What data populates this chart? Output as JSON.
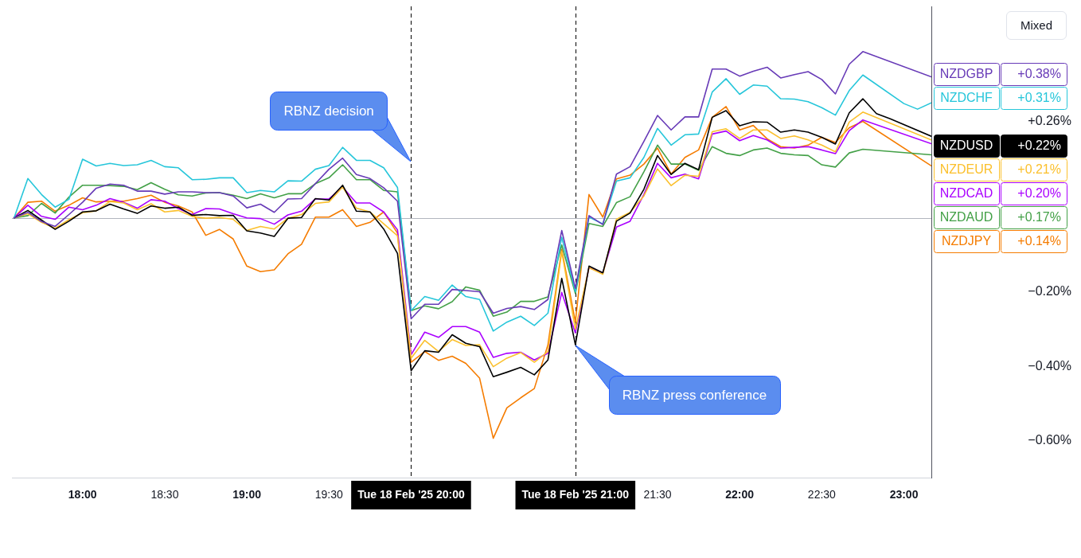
{
  "chart_data": {
    "type": "line",
    "x": [
      17.583,
      17.667,
      17.75,
      17.833,
      17.917,
      18,
      18.083,
      18.167,
      18.25,
      18.333,
      18.417,
      18.5,
      18.583,
      18.667,
      18.75,
      18.833,
      18.917,
      19,
      19.083,
      19.167,
      19.25,
      19.333,
      19.417,
      19.5,
      19.583,
      19.667,
      19.75,
      19.833,
      19.917,
      20,
      20.083,
      20.167,
      20.25,
      20.333,
      20.417,
      20.5,
      20.583,
      20.667,
      20.75,
      20.833,
      20.917,
      21,
      21.083,
      21.167,
      21.25,
      21.333,
      21.417,
      21.5,
      21.583,
      21.667,
      21.75,
      21.833,
      21.917,
      22,
      22.083,
      22.167,
      22.25,
      22.333,
      22.417,
      22.5,
      22.583,
      22.667,
      22.75,
      22.833,
      22.917,
      23,
      23.083,
      23.167
    ],
    "series": [
      {
        "name": "NZDGBP",
        "color": "#673ab7",
        "values": [
          0,
          0.015,
          -0.01,
          -0.023,
          0.009,
          0.042,
          0.08,
          0.091,
          0.088,
          0.072,
          0.072,
          0.064,
          0.07,
          0.07,
          0.068,
          0.068,
          0.059,
          0.027,
          0.037,
          0.015,
          0.051,
          0.052,
          0.092,
          0.131,
          0.161,
          0.117,
          0.106,
          0.081,
          0.045,
          -0.272,
          -0.233,
          -0.233,
          -0.193,
          -0.196,
          -0.199,
          -0.257,
          -0.244,
          -0.239,
          -0.247,
          -0.22,
          -0.034,
          -0.19,
          0.006,
          -0.018,
          0.118,
          0.138,
          0.206,
          0.276,
          0.237,
          0.272,
          0.272,
          0.401,
          0.401,
          0.382,
          0.395,
          0.406,
          0.377,
          0.386,
          0.394,
          0.373,
          0.334,
          0.414,
          0.448,
          null,
          null,
          null,
          null,
          0.38
        ]
      },
      {
        "name": "NZDCHF",
        "color": "#26c6da",
        "values": [
          0,
          0.106,
          0.063,
          0.029,
          0.05,
          0.158,
          0.14,
          0.147,
          0.141,
          0.143,
          0.155,
          0.138,
          0.135,
          0.103,
          0.104,
          0.108,
          0.108,
          0.068,
          0.074,
          0.07,
          0.1,
          0.099,
          0.131,
          0.141,
          0.19,
          0.155,
          0.155,
          0.135,
          0.082,
          -0.25,
          -0.212,
          -0.222,
          -0.181,
          -0.212,
          -0.22,
          -0.305,
          -0.281,
          -0.265,
          -0.29,
          -0.257,
          -0.052,
          -0.199,
          0.002,
          -0.016,
          0.099,
          0.108,
          0.163,
          0.241,
          0.196,
          0.224,
          0.226,
          0.339,
          0.375,
          0.333,
          0.358,
          0.355,
          0.321,
          0.32,
          0.313,
          0.297,
          0.277,
          0.343,
          0.385,
          null,
          null,
          0.308,
          0.293,
          0.31
        ]
      },
      {
        "name": "NZDUSD",
        "color": "#000000",
        "values": [
          0,
          0.02,
          -0.006,
          -0.031,
          -0.009,
          0.016,
          0.019,
          0.037,
          0.024,
          0.012,
          0.032,
          0.026,
          0.029,
          0.007,
          0.009,
          0.006,
          0.007,
          -0.035,
          -0.041,
          -0.05,
          -0.001,
          0.001,
          0.052,
          0.048,
          0.088,
          0.018,
          0.016,
          -0.03,
          -0.096,
          -0.412,
          -0.358,
          -0.362,
          -0.315,
          -0.338,
          -0.347,
          -0.428,
          -0.416,
          -0.403,
          -0.423,
          -0.383,
          -0.163,
          -0.342,
          -0.13,
          -0.148,
          -0.009,
          0.013,
          0.077,
          0.168,
          0.117,
          0.147,
          0.13,
          0.271,
          0.289,
          0.248,
          0.259,
          0.258,
          0.231,
          0.237,
          0.231,
          0.217,
          0.199,
          0.283,
          0.321,
          0.281,
          0.267,
          null,
          null,
          0.22
        ]
      },
      {
        "name": "NZDEUR",
        "color": "#fbc02d",
        "values": [
          0,
          0.011,
          -0.012,
          -0.028,
          -0.005,
          0.014,
          0.019,
          0.044,
          0.04,
          0.022,
          0.038,
          0.016,
          0.02,
          0.004,
          -0.001,
          0.001,
          -0.004,
          -0.034,
          -0.023,
          -0.03,
          -0.001,
          0.009,
          0.039,
          0.043,
          0.083,
          0.026,
          0.016,
          -0.016,
          -0.048,
          -0.378,
          -0.33,
          -0.36,
          -0.328,
          -0.344,
          -0.342,
          -0.401,
          -0.378,
          -0.363,
          -0.389,
          -0.36,
          -0.091,
          -0.3,
          -0.134,
          -0.152,
          -0.004,
          0.015,
          0.059,
          0.132,
          0.087,
          0.115,
          0.112,
          0.232,
          0.24,
          0.214,
          0.237,
          0.237,
          0.214,
          0.221,
          0.21,
          0.196,
          0.178,
          0.258,
          0.285,
          null,
          null,
          null,
          null,
          0.21
        ]
      },
      {
        "name": "NZDCAD",
        "color": "#aa00ff",
        "values": [
          0,
          0.034,
          0.004,
          -0.004,
          0.029,
          0.022,
          0.034,
          0.052,
          0.042,
          0.026,
          0.049,
          0.045,
          0.025,
          0.009,
          0.025,
          0.024,
          0.011,
          0,
          -0.002,
          -0.017,
          0.008,
          0.018,
          0.051,
          0.051,
          0.083,
          0.04,
          0.04,
          0.016,
          -0.032,
          -0.369,
          -0.308,
          -0.322,
          -0.293,
          -0.293,
          -0.308,
          -0.376,
          -0.365,
          -0.362,
          -0.383,
          -0.365,
          -0.201,
          -0.31,
          -0.134,
          -0.148,
          -0.025,
          -0.009,
          0.063,
          0.147,
          0.108,
          0.118,
          0.105,
          0.226,
          0.234,
          0.208,
          0.222,
          0.21,
          0.188,
          0.19,
          0.192,
          0.183,
          0.173,
          0.235,
          0.264,
          null,
          null,
          null,
          null,
          0.2
        ]
      },
      {
        "name": "NZDAUD",
        "color": "#43a047",
        "values": [
          0,
          0.006,
          0.039,
          0.013,
          0.056,
          0.088,
          0.088,
          0.087,
          0.085,
          0.076,
          0.095,
          0.077,
          0.062,
          0.059,
          0.067,
          0.068,
          0.061,
          0.052,
          0.065,
          0.054,
          0.065,
          0.065,
          0.092,
          0.108,
          0.143,
          0.103,
          0.103,
          0.074,
          0.07,
          -0.25,
          -0.237,
          -0.245,
          -0.226,
          -0.186,
          -0.195,
          -0.265,
          -0.254,
          -0.225,
          -0.225,
          -0.213,
          -0.073,
          -0.204,
          -0.015,
          -0.023,
          0.041,
          0.057,
          0.124,
          0.196,
          0.145,
          0.145,
          0.128,
          0.192,
          0.174,
          0.168,
          0.183,
          0.188,
          0.174,
          0.17,
          0.168,
          0.143,
          0.137,
          0.175,
          0.185,
          null,
          null,
          null,
          null,
          0.17
        ]
      },
      {
        "name": "NZDJPY",
        "color": "#f57c00",
        "values": [
          0,
          0.042,
          0.045,
          0.018,
          0.034,
          0.054,
          0.043,
          0.045,
          0.045,
          0.052,
          0.061,
          0.042,
          0.032,
          0.016,
          -0.047,
          -0.031,
          -0.057,
          -0.13,
          -0.145,
          -0.14,
          -0.097,
          -0.071,
          0.002,
          0.002,
          0.022,
          -0.023,
          -0.012,
          0.016,
          -0.041,
          -0.389,
          -0.36,
          -0.384,
          -0.373,
          -0.392,
          -0.432,
          -0.594,
          -0.512,
          -0.485,
          -0.46,
          -0.342,
          -0.085,
          -0.281,
          0.063,
          0.002,
          0.105,
          0.115,
          0.145,
          0.188,
          0.118,
          0.163,
          0.183,
          0.271,
          0.3,
          0.237,
          0.249,
          0.213,
          0.192,
          0.188,
          0.196,
          0.217,
          0.203,
          0.243,
          0.26,
          null,
          null,
          null,
          null,
          0.14
        ]
      }
    ],
    "xlim": [
      17.57,
      23.167
    ],
    "ylim": [
      -0.7,
      0.57
    ],
    "xticks": [
      {
        "value": 18,
        "label": "18:00"
      },
      {
        "value": 18.5,
        "label": "18:30"
      },
      {
        "value": 19,
        "label": "19:00"
      },
      {
        "value": 19.5,
        "label": "19:30"
      },
      {
        "value": 21.5,
        "label": "21:30"
      },
      {
        "value": 22,
        "label": "22:00"
      },
      {
        "value": 22.5,
        "label": "22:30"
      },
      {
        "value": 23,
        "label": "23:00"
      }
    ],
    "yticks": [
      {
        "value": 0.26,
        "label": "+0.26%"
      },
      {
        "value": -0.2,
        "label": "−0.20%"
      },
      {
        "value": -0.4,
        "label": "−0.40%"
      },
      {
        "value": -0.6,
        "label": "−0.60%"
      }
    ],
    "ref_lines": [
      {
        "axis": "y",
        "value": 0,
        "color": "#b2b5be"
      },
      {
        "axis": "x",
        "value": 20,
        "label": "Tue 18 Feb '25 20:00",
        "color": "#000000",
        "line_style": "dashed"
      },
      {
        "axis": "x",
        "value": 21,
        "label": "Tue 18 Feb '25 21:00",
        "color": "#000000",
        "line_style": "dashed"
      }
    ],
    "annotations": [
      "Mixed",
      "+0.38%",
      "+0.31%",
      "+0.22%",
      "+0.21%",
      "+0.20%",
      "+0.17%",
      "+0.14%",
      "RBNZ decision",
      "RBNZ press conference"
    ],
    "legend": "right"
  }
}
